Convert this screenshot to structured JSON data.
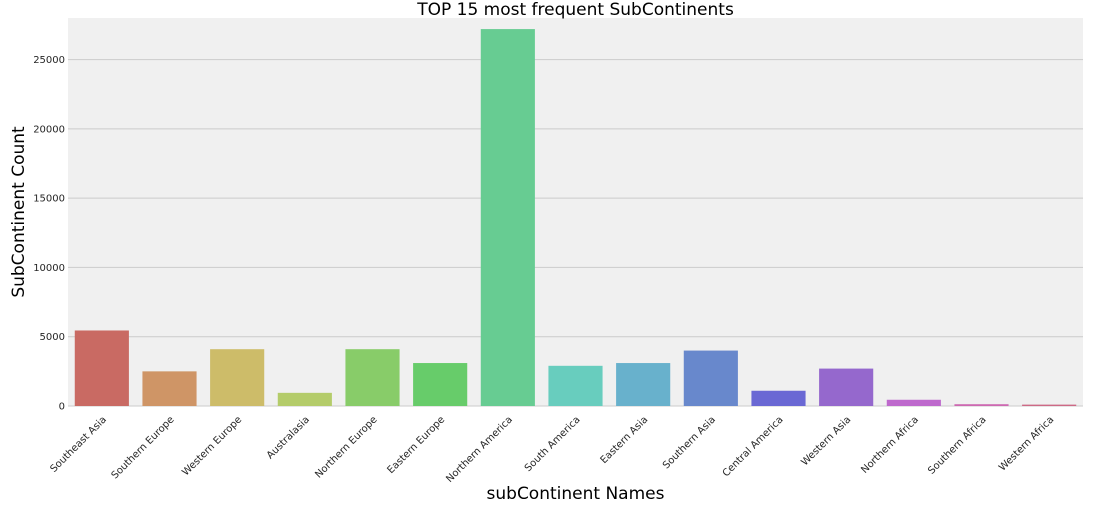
{
  "chart_data": {
    "type": "bar",
    "title": "TOP 15 most frequent SubContinents",
    "xlabel": "subContinent Names",
    "ylabel": "SubContinent Count",
    "categories": [
      "Southeast Asia",
      "Southern Europe",
      "Western Europe",
      "Australasia",
      "Northern Europe",
      "Eastern Europe",
      "Northern America",
      "South America",
      "Eastern Asia",
      "Southern Asia",
      "Central America",
      "Western Asia",
      "Northern Africa",
      "Southern Africa",
      "Western Africa"
    ],
    "values": [
      5450,
      2500,
      4100,
      950,
      4100,
      3100,
      27200,
      2900,
      3100,
      4000,
      1100,
      2700,
      450,
      130,
      100
    ],
    "ylim": [
      0,
      28000
    ],
    "yticks": [
      0,
      5000,
      10000,
      15000,
      20000,
      25000
    ],
    "grid": true,
    "legend": "none",
    "colors": [
      "#c96a63",
      "#cf9566",
      "#cdbc69",
      "#b4cc6a",
      "#88cc69",
      "#67cc6a",
      "#67cc92",
      "#68cdbe",
      "#68b1cc",
      "#6888cc",
      "#6a68d4",
      "#9568cd",
      "#be69cd",
      "#cd69b1",
      "#cd6a86"
    ],
    "plot_background": "#f0f0f0",
    "grid_color": "#cbcbcb"
  }
}
